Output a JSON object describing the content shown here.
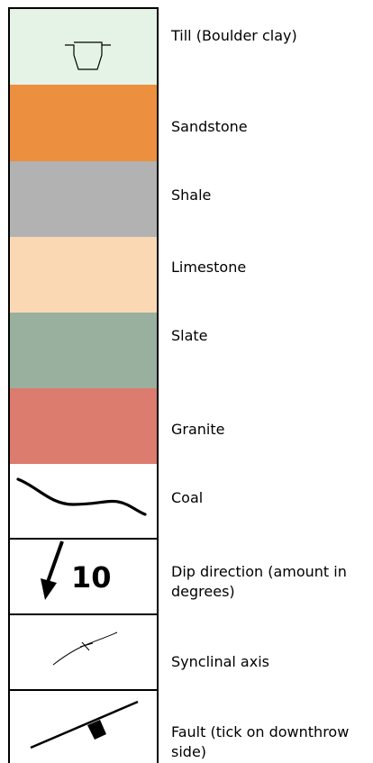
{
  "legend": [
    {
      "key": "till",
      "label": "Till (Boulder clay)",
      "color": "#e4f3e5"
    },
    {
      "key": "sandstone",
      "label": "Sandstone",
      "color": "#ec8f3e"
    },
    {
      "key": "shale",
      "label": "Shale",
      "color": "#b2b2b2"
    },
    {
      "key": "limestone",
      "label": "Limestone",
      "color": "#fad8b4"
    },
    {
      "key": "slate",
      "label": "Slate",
      "color": "#99b09e"
    },
    {
      "key": "granite",
      "label": "Granite",
      "color": "#db7c6f"
    },
    {
      "key": "coal",
      "label": "Coal",
      "color": "#ffffff"
    },
    {
      "key": "dip",
      "label": "Dip direction (amount in degrees)",
      "color": "#ffffff",
      "value": "10"
    },
    {
      "key": "syncline",
      "label": "Synclinal axis",
      "color": "#ffffff"
    },
    {
      "key": "fault",
      "label": "Fault (tick on downthrow side)",
      "color": "#ffffff"
    }
  ]
}
